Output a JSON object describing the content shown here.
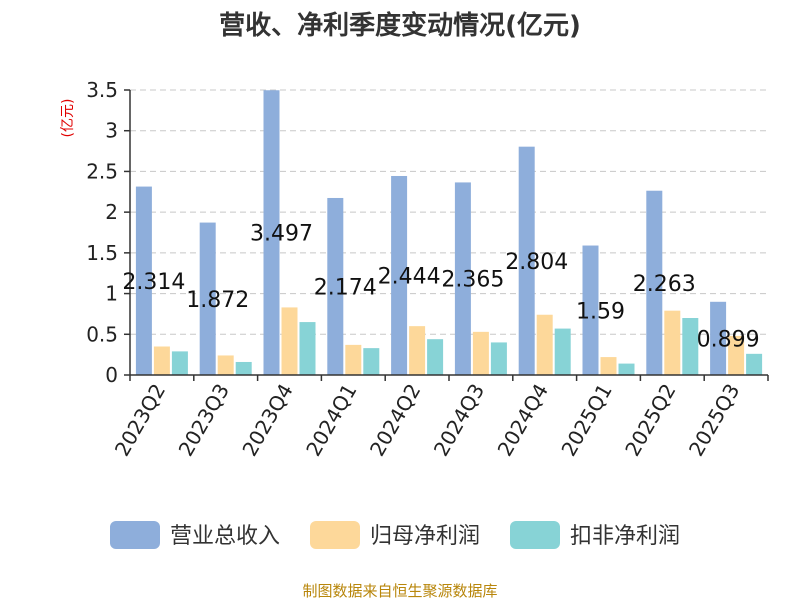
{
  "title": "营收、净利季度变动情况(亿元)",
  "source": "制图数据来自恒生聚源数据库",
  "chart_data": {
    "type": "bar",
    "title": "营收、净利季度变动情况(亿元)",
    "ylabel": "(亿元)",
    "xlabel": "",
    "ylim": [
      0,
      3.5
    ],
    "yticks": [
      "0",
      "0.5",
      "1",
      "1.5",
      "2",
      "2.5",
      "3",
      "3.5"
    ],
    "grid": true,
    "legend_position": "bottom",
    "categories": [
      "2023Q2",
      "2023Q3",
      "2023Q4",
      "2024Q1",
      "2024Q2",
      "2024Q3",
      "2024Q4",
      "2025Q1",
      "2025Q2",
      "2025Q3"
    ],
    "series": [
      {
        "name": "营业总收入",
        "color": "#8eaedb",
        "values": [
          2.314,
          1.872,
          3.497,
          2.174,
          2.444,
          2.365,
          2.804,
          1.59,
          2.263,
          0.899
        ],
        "labels": [
          "2.314",
          "1.872",
          "3.497",
          "2.174",
          "2.444",
          "2.365",
          "2.804",
          "1.59",
          "2.263",
          "0.899"
        ]
      },
      {
        "name": "归母净利润",
        "color": "#fdd89a",
        "values": [
          0.35,
          0.24,
          0.83,
          0.37,
          0.6,
          0.53,
          0.74,
          0.22,
          0.79,
          0.48
        ]
      },
      {
        "name": "扣非净利润",
        "color": "#87d3d6",
        "values": [
          0.29,
          0.16,
          0.65,
          0.33,
          0.44,
          0.4,
          0.57,
          0.14,
          0.7,
          0.26
        ]
      }
    ]
  }
}
